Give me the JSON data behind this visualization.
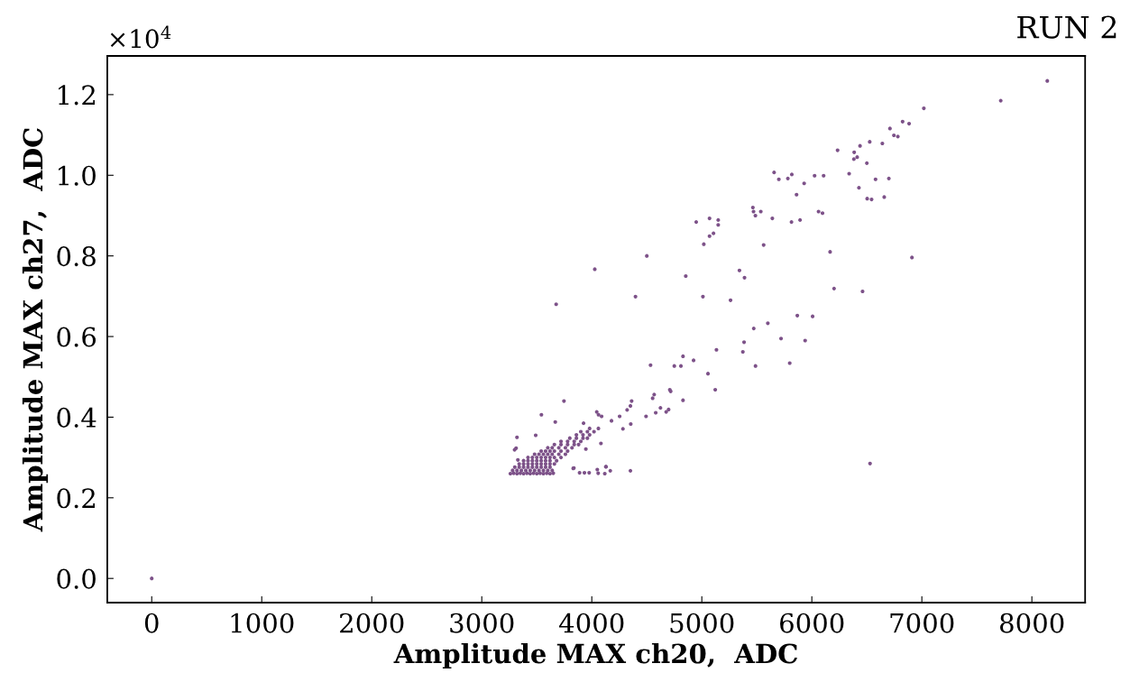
{
  "chart_data": {
    "type": "scatter",
    "title": "RUN 2",
    "xlabel": "Amplitude MAX ch20,  ADC",
    "ylabel": "Amplitude MAX ch27,  ADC",
    "annotations": [
      "×10$^{4}$"
    ],
    "xlim": [
      -404,
      8484
    ],
    "xticks": [
      0,
      1000,
      2000,
      3000,
      4000,
      5000,
      6000,
      7000,
      8000
    ],
    "ylim": [
      -0.06,
      1.296
    ],
    "yticks": [
      {
        "value": 0,
        "label": "0.0"
      },
      0.2,
      0.4,
      0.6,
      0.8,
      {
        "value": 1,
        "label": "1.0"
      },
      1.2
    ],
    "grid": false,
    "series": [
      {
        "color": "#7d5289",
        "x": [
          0,
          8140,
          7717,
          7018,
          6825,
          6884,
          6710,
          6746,
          6782,
          6526,
          6641,
          6438,
          6234,
          6385,
          6412,
          6382,
          6500,
          5657,
          5700,
          5782,
          5818,
          5930,
          6025,
          6107,
          6339,
          6579,
          6700,
          6428,
          5861,
          6503,
          6543,
          6658,
          5464,
          5470,
          5487,
          5536,
          6061,
          6097,
          4949,
          5070,
          5149,
          5149,
          5641,
          5815,
          5893,
          5070,
          5106,
          5018,
          5562,
          6166,
          6910,
          4500,
          4027,
          4854,
          5342,
          5388,
          6202,
          6461,
          3676,
          4397,
          5010,
          5261,
          5868,
          6007,
          5600,
          5472,
          5720,
          5939,
          5384,
          5373,
          5133,
          4829,
          4925,
          4534,
          4750,
          4810,
          5488,
          5799,
          5056,
          5122,
          4709,
          4717,
          4829,
          4567,
          4553,
          4362,
          4351,
          4321,
          4676,
          4698,
          4624,
          4581,
          4493,
          6529,
          3747,
          3542,
          3668,
          4253,
          4179,
          4354,
          4283,
          4045,
          4061,
          4089,
          3925,
          4083,
          3946,
          4130,
          3837,
          3320,
          3312,
          3298,
          3490,
          3328,
          3831,
          3889,
          3933,
          3976,
          4050,
          4058,
          4127,
          4118,
          4168,
          4351,
          3260,
          3290,
          3320,
          3350,
          3380,
          3410,
          3440,
          3470,
          3500,
          3530,
          3560,
          3590,
          3620,
          3650,
          3280,
          3320,
          3360,
          3400,
          3440,
          3480,
          3520,
          3560,
          3600,
          3640,
          3300,
          3340,
          3380,
          3420,
          3460,
          3500,
          3540,
          3580,
          3620,
          3340,
          3380,
          3420,
          3460,
          3500,
          3540,
          3580,
          3620,
          3660,
          3380,
          3420,
          3460,
          3500,
          3540,
          3580,
          3620,
          3680,
          3420,
          3460,
          3500,
          3540,
          3580,
          3620,
          3660,
          3720,
          3480,
          3520,
          3560,
          3600,
          3640,
          3700,
          3760,
          3540,
          3580,
          3620,
          3660,
          3720,
          3780,
          3600,
          3640,
          3700,
          3760,
          3820,
          3660,
          3720,
          3780,
          3840,
          3880,
          3720,
          3780,
          3840,
          3900,
          3800,
          3860,
          3920,
          3960,
          3860,
          3920,
          3980,
          3900,
          3960,
          4020,
          3980,
          4060
        ],
        "values": [
          0,
          1.234,
          1.185,
          1.166,
          1.133,
          1.128,
          1.116,
          1.099,
          1.096,
          1.083,
          1.079,
          1.073,
          1.062,
          1.057,
          1.045,
          1.04,
          1.03,
          1.007,
          0.99,
          0.992,
          1.002,
          0.98,
          0.999,
          0.999,
          1.004,
          0.99,
          0.992,
          0.969,
          0.952,
          0.942,
          0.94,
          0.946,
          0.92,
          0.91,
          0.9,
          0.91,
          0.91,
          0.906,
          0.884,
          0.893,
          0.889,
          0.877,
          0.893,
          0.884,
          0.889,
          0.849,
          0.856,
          0.829,
          0.827,
          0.81,
          0.796,
          0.8,
          0.767,
          0.75,
          0.764,
          0.746,
          0.719,
          0.712,
          0.68,
          0.699,
          0.699,
          0.69,
          0.652,
          0.65,
          0.633,
          0.62,
          0.595,
          0.59,
          0.586,
          0.562,
          0.567,
          0.551,
          0.541,
          0.529,
          0.527,
          0.527,
          0.527,
          0.534,
          0.508,
          0.468,
          0.468,
          0.464,
          0.442,
          0.456,
          0.447,
          0.44,
          0.428,
          0.418,
          0.413,
          0.419,
          0.423,
          0.411,
          0.402,
          0.285,
          0.44,
          0.406,
          0.388,
          0.402,
          0.391,
          0.383,
          0.371,
          0.413,
          0.406,
          0.402,
          0.385,
          0.335,
          0.321,
          0.277,
          0.274,
          0.35,
          0.323,
          0.319,
          0.355,
          0.294,
          0.273,
          0.262,
          0.262,
          0.262,
          0.27,
          0.261,
          0.277,
          0.26,
          0.267,
          0.267,
          0.26,
          0.261,
          0.26,
          0.261,
          0.26,
          0.261,
          0.26,
          0.261,
          0.26,
          0.261,
          0.26,
          0.261,
          0.26,
          0.261,
          0.268,
          0.268,
          0.268,
          0.268,
          0.268,
          0.268,
          0.268,
          0.268,
          0.268,
          0.268,
          0.276,
          0.276,
          0.276,
          0.276,
          0.276,
          0.276,
          0.276,
          0.276,
          0.276,
          0.284,
          0.284,
          0.284,
          0.284,
          0.284,
          0.284,
          0.284,
          0.284,
          0.284,
          0.292,
          0.292,
          0.292,
          0.292,
          0.292,
          0.292,
          0.292,
          0.292,
          0.3,
          0.3,
          0.3,
          0.3,
          0.3,
          0.3,
          0.3,
          0.3,
          0.308,
          0.308,
          0.308,
          0.308,
          0.308,
          0.308,
          0.308,
          0.316,
          0.316,
          0.316,
          0.316,
          0.316,
          0.316,
          0.324,
          0.324,
          0.324,
          0.324,
          0.324,
          0.332,
          0.332,
          0.332,
          0.332,
          0.332,
          0.34,
          0.34,
          0.34,
          0.34,
          0.348,
          0.348,
          0.348,
          0.348,
          0.356,
          0.356,
          0.356,
          0.364,
          0.364,
          0.364,
          0.372,
          0.372
        ]
      }
    ]
  }
}
